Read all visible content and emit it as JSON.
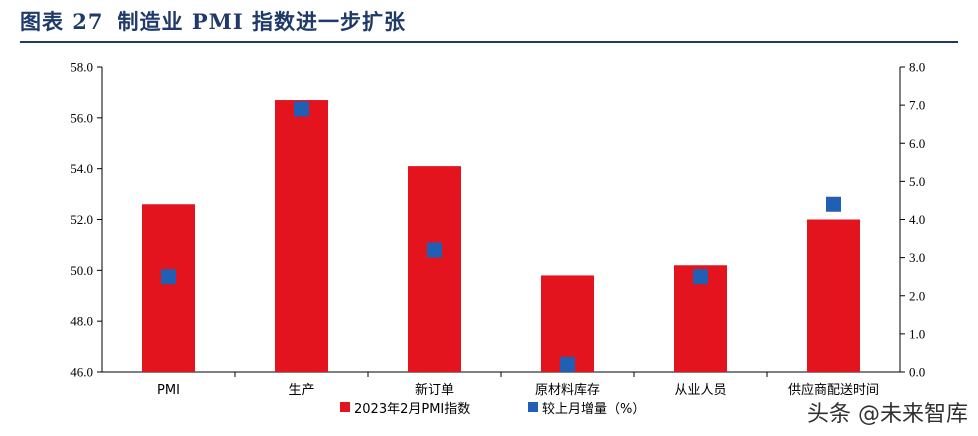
{
  "figure": {
    "number_label": "图表 27",
    "title": "制造业 PMI 指数进一步扩张"
  },
  "watermark": "头条 @未来智库",
  "colors": {
    "bar": "#e3141e",
    "marker": "#1f5fb4",
    "title": "#1f3a68"
  },
  "chart_data": {
    "type": "bar",
    "categories": [
      "PMI",
      "生产",
      "新订单",
      "原材料库存",
      "从业人员",
      "供应商配送时间"
    ],
    "series": [
      {
        "name": "2023年2月PMI指数",
        "kind": "bar",
        "axis": "left",
        "values": [
          52.6,
          56.7,
          54.1,
          49.8,
          50.2,
          52.0
        ]
      },
      {
        "name": "较上月增量（%）",
        "kind": "marker",
        "axis": "right",
        "values": [
          2.5,
          6.9,
          3.2,
          0.2,
          2.5,
          4.4
        ]
      }
    ],
    "left_axis": {
      "min": 46.0,
      "max": 58.0,
      "step": 2.0,
      "tick_labels": [
        "46.0",
        "48.0",
        "50.0",
        "52.0",
        "54.0",
        "56.0",
        "58.0"
      ]
    },
    "right_axis": {
      "min": 0.0,
      "max": 8.0,
      "step": 1.0,
      "tick_labels": [
        "0.0",
        "1.0",
        "2.0",
        "3.0",
        "4.0",
        "5.0",
        "6.0",
        "7.0",
        "8.0"
      ]
    },
    "legend_position": "bottom",
    "grid": false
  }
}
